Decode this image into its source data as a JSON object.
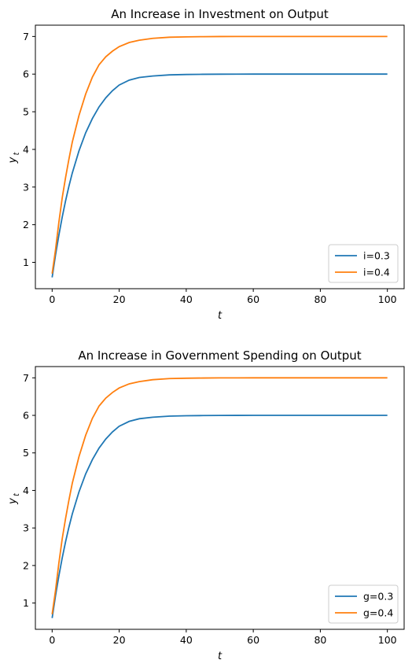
{
  "chart_data": [
    {
      "type": "line",
      "title": "An Increase in Investment on Output",
      "xlabel": "t",
      "ylabel": "y",
      "ylabel_sub": "t",
      "xlim": [
        -5,
        105
      ],
      "ylim": [
        0.3,
        7.3
      ],
      "xticks": [
        0,
        20,
        40,
        60,
        80,
        100
      ],
      "yticks": [
        1,
        2,
        3,
        4,
        5,
        6,
        7
      ],
      "legend_position": "lower-right",
      "grid": false,
      "series": [
        {
          "name": "i=0.3",
          "color": "#1f77b4",
          "x": [
            0,
            1,
            2,
            3,
            4,
            5,
            6,
            8,
            10,
            12,
            14,
            16,
            18,
            20,
            23,
            26,
            30,
            35,
            40,
            45,
            50,
            55,
            60,
            70,
            80,
            90,
            100
          ],
          "y": [
            0.6,
            1.19,
            1.72,
            2.2,
            2.63,
            3.02,
            3.37,
            3.96,
            4.44,
            4.82,
            5.13,
            5.37,
            5.56,
            5.71,
            5.84,
            5.91,
            5.95,
            5.98,
            5.99,
            5.995,
            5.998,
            5.999,
            6.0,
            6.0,
            6.0,
            6.0,
            6.0
          ]
        },
        {
          "name": "i=0.4",
          "color": "#ff7f0e",
          "x": [
            0,
            1,
            2,
            3,
            4,
            5,
            6,
            8,
            10,
            12,
            14,
            16,
            18,
            20,
            23,
            26,
            30,
            35,
            40,
            45,
            50,
            55,
            60,
            70,
            80,
            90,
            100
          ],
          "y": [
            0.7,
            1.33,
            2.06,
            2.71,
            3.25,
            3.74,
            4.19,
            4.9,
            5.47,
            5.92,
            6.25,
            6.46,
            6.61,
            6.73,
            6.84,
            6.9,
            6.95,
            6.98,
            6.99,
            6.995,
            6.998,
            6.999,
            7.0,
            7.0,
            7.0,
            7.0,
            7.0
          ]
        }
      ]
    },
    {
      "type": "line",
      "title": "An Increase in Government Spending on Output",
      "xlabel": "t",
      "ylabel": "y",
      "ylabel_sub": "t",
      "xlim": [
        -5,
        105
      ],
      "ylim": [
        0.3,
        7.3
      ],
      "xticks": [
        0,
        20,
        40,
        60,
        80,
        100
      ],
      "yticks": [
        1,
        2,
        3,
        4,
        5,
        6,
        7
      ],
      "legend_position": "lower-right",
      "grid": false,
      "series": [
        {
          "name": "g=0.3",
          "color": "#1f77b4",
          "x": [
            0,
            1,
            2,
            3,
            4,
            5,
            6,
            8,
            10,
            12,
            14,
            16,
            18,
            20,
            23,
            26,
            30,
            35,
            40,
            45,
            50,
            55,
            60,
            70,
            80,
            90,
            100
          ],
          "y": [
            0.6,
            1.19,
            1.72,
            2.2,
            2.63,
            3.02,
            3.37,
            3.96,
            4.44,
            4.82,
            5.13,
            5.37,
            5.56,
            5.71,
            5.84,
            5.91,
            5.95,
            5.98,
            5.99,
            5.995,
            5.998,
            5.999,
            6.0,
            6.0,
            6.0,
            6.0,
            6.0
          ]
        },
        {
          "name": "g=0.4",
          "color": "#ff7f0e",
          "x": [
            0,
            1,
            2,
            3,
            4,
            5,
            6,
            8,
            10,
            12,
            14,
            16,
            18,
            20,
            23,
            26,
            30,
            35,
            40,
            45,
            50,
            55,
            60,
            70,
            80,
            90,
            100
          ],
          "y": [
            0.7,
            1.33,
            2.06,
            2.71,
            3.25,
            3.74,
            4.19,
            4.9,
            5.47,
            5.92,
            6.25,
            6.46,
            6.61,
            6.73,
            6.84,
            6.9,
            6.95,
            6.98,
            6.99,
            6.995,
            6.998,
            6.999,
            7.0,
            7.0,
            7.0,
            7.0,
            7.0
          ]
        }
      ]
    }
  ]
}
